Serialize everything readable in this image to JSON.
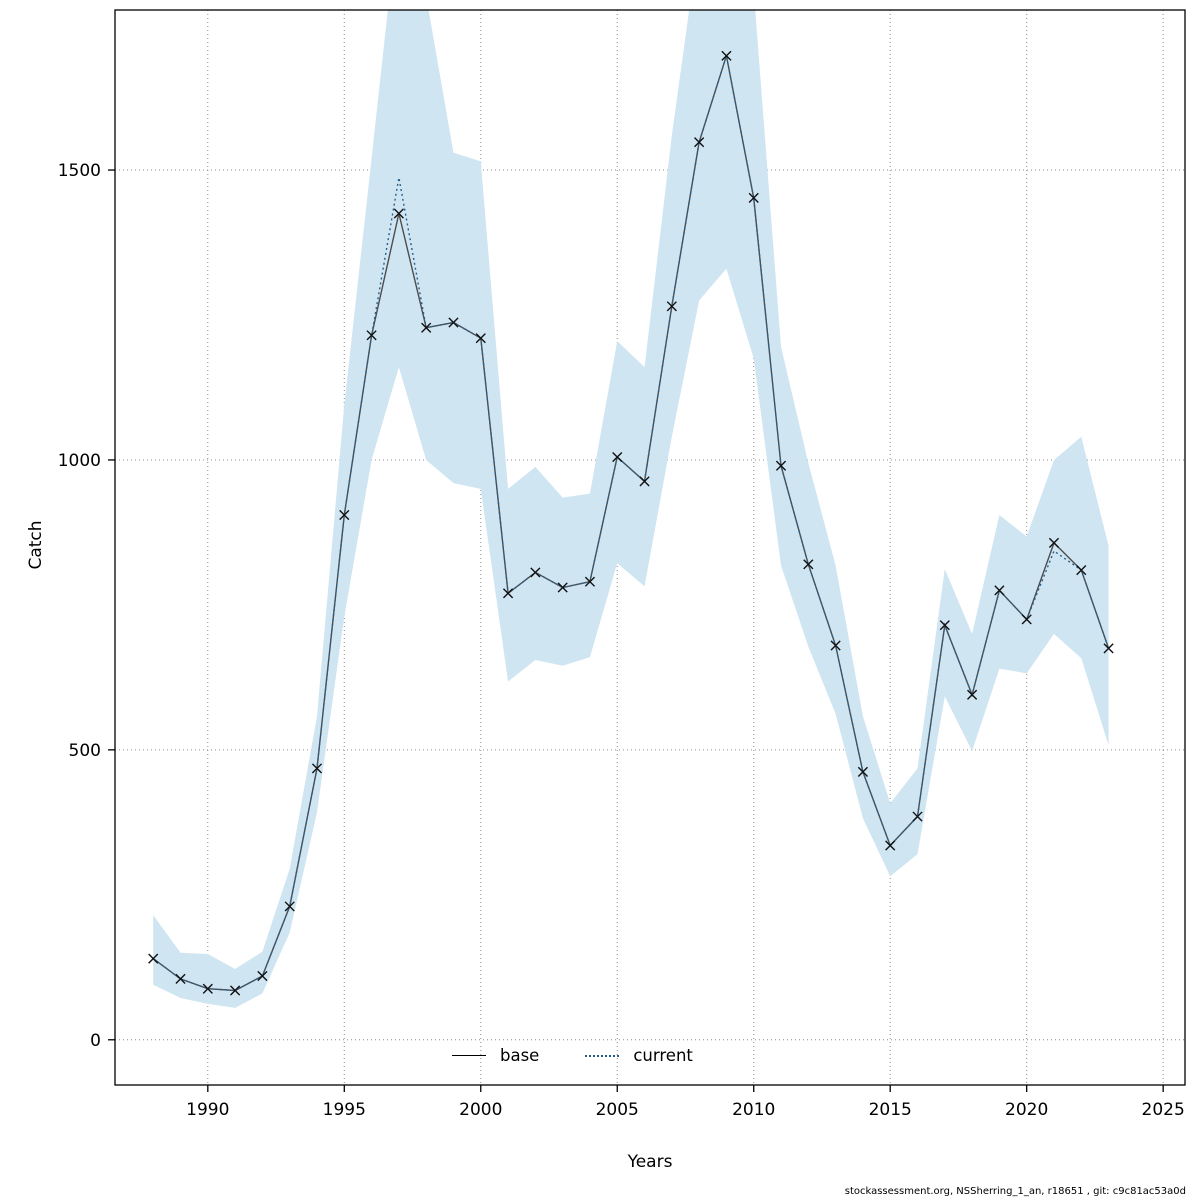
{
  "page": {
    "background": "#ffffff"
  },
  "footer": {
    "text": "stockassessment.org, NSSherring_1_an, r18651 , git: c9c81ac53a0d"
  },
  "chart_data": {
    "type": "line",
    "title": "",
    "xlabel": "Years",
    "ylabel": "Catch",
    "x_ticks": [
      1990,
      1995,
      2000,
      2005,
      2010,
      2015,
      2020,
      2025
    ],
    "y_ticks": [
      0,
      500,
      1000,
      1500
    ],
    "xlim": [
      1986.6,
      2025.8
    ],
    "ylim": [
      -78,
      1776
    ],
    "grid": "dotted",
    "grid_color": "#8e8e8e",
    "legend": {
      "position": "bottom-center",
      "entries": [
        {
          "label": "base",
          "style": "solid",
          "color": "#000000"
        },
        {
          "label": "current",
          "style": "dotted",
          "color": "#27618f"
        }
      ]
    },
    "years": [
      1988,
      1989,
      1990,
      1991,
      1992,
      1993,
      1994,
      1995,
      1996,
      1997,
      1998,
      1999,
      2000,
      2001,
      2002,
      2003,
      2004,
      2005,
      2006,
      2007,
      2008,
      2009,
      2010,
      2011,
      2012,
      2013,
      2014,
      2015,
      2016,
      2017,
      2018,
      2019,
      2020,
      2021,
      2022,
      2023
    ],
    "series": [
      {
        "name": "base",
        "style": "solid",
        "color": "#4d4d4d",
        "values": [
          140,
          105,
          88,
          85,
          110,
          230,
          468,
          905,
          1215,
          1425,
          1228,
          1237,
          1210,
          770,
          806,
          780,
          790,
          1005,
          963,
          1265,
          1548,
          1697,
          1452,
          990,
          820,
          680,
          462,
          335,
          385,
          715,
          595,
          775,
          725,
          857,
          810,
          675
        ]
      },
      {
        "name": "current",
        "style": "dotted",
        "color": "#27618f",
        "values": [
          140,
          105,
          88,
          85,
          110,
          230,
          468,
          905,
          1215,
          1487,
          1228,
          1237,
          1210,
          770,
          806,
          780,
          790,
          1005,
          963,
          1265,
          1548,
          1697,
          1452,
          990,
          820,
          680,
          462,
          335,
          385,
          715,
          595,
          775,
          725,
          843,
          810,
          675
        ]
      }
    ],
    "band": {
      "name": "confidence-band",
      "color": "#cfe5f2",
      "lower": [
        95,
        72,
        62,
        55,
        80,
        185,
        392,
        730,
        1000,
        1160,
        1000,
        960,
        950,
        618,
        655,
        645,
        660,
        822,
        782,
        1040,
        1275,
        1330,
        1175,
        818,
        678,
        562,
        382,
        282,
        320,
        592,
        498,
        640,
        632,
        700,
        658,
        508
      ],
      "upper": [
        215,
        150,
        148,
        122,
        152,
        295,
        558,
        1095,
        1520,
        1950,
        1800,
        1530,
        1515,
        950,
        988,
        935,
        942,
        1205,
        1160,
        1560,
        1900,
        2100,
        1810,
        1195,
        995,
        818,
        558,
        408,
        468,
        812,
        700,
        905,
        868,
        1000,
        1040,
        852
      ]
    },
    "marker": {
      "shape": "x",
      "color": "#111111"
    }
  }
}
